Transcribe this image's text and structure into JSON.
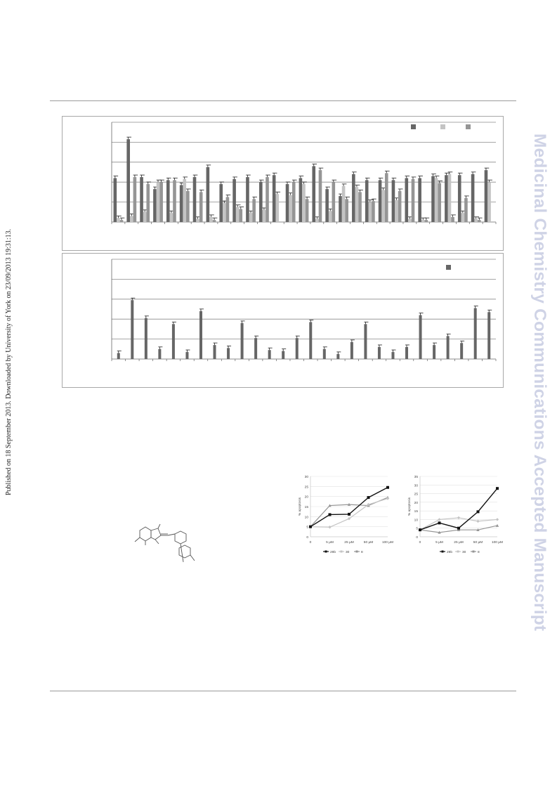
{
  "header_rule": "-",
  "download_notice": "Published on 18 September 2013. Downloaded by University of York on 23/09/2013 19:31:13.",
  "watermark": "Medicinal Chemistry Communications Accepted Manuscript",
  "colors": {
    "dark": "#666666",
    "mid": "#959595",
    "light": "#c4c4c4",
    "black": "#111111",
    "watermark": "#cfd3e6"
  },
  "chart_data": [
    {
      "type": "bar",
      "panel": "top",
      "series": [
        {
          "color": "#666666",
          "values": [
            44,
            83,
            45,
            33,
            42,
            37,
            45,
            55,
            38,
            43,
            45,
            40,
            47,
            38,
            44,
            56,
            33,
            26,
            48,
            42,
            42,
            42,
            44,
            44,
            46,
            47,
            47,
            48,
            52
          ]
        },
        {
          "color": "#c4c4c4",
          "values": [
            4,
            6,
            10,
            40,
            9,
            43,
            3,
            5,
            19,
            15,
            9,
            12,
            28,
            27,
            38,
            3,
            11,
            36,
            35,
            20,
            32,
            22,
            3,
            2,
            44,
            48,
            9,
            3,
            40
          ]
        },
        {
          "color": "#959595",
          "values": [
            2,
            45,
            38,
            40,
            42,
            31,
            30,
            2,
            25,
            13,
            23,
            45,
            0,
            40,
            23,
            52,
            40,
            23,
            30,
            21,
            49,
            31,
            43,
            2,
            39,
            5,
            24,
            2,
            0
          ]
        }
      ],
      "ylim": [
        0,
        100
      ]
    },
    {
      "type": "bar",
      "panel": "bottom",
      "series": [
        {
          "color": "#666666",
          "values": [
            6,
            59,
            41,
            10,
            35,
            7,
            48,
            14,
            11,
            36,
            21,
            9,
            8,
            21,
            37,
            10,
            5,
            17,
            35,
            12,
            7,
            12,
            44,
            14,
            23,
            16,
            51,
            47
          ]
        }
      ],
      "ylim": [
        0,
        100
      ]
    },
    {
      "type": "line",
      "panel": "lower-left",
      "categories": [
        "0",
        "5 µM",
        "25 µM",
        "50 µM",
        "100 µM"
      ],
      "yticks": [
        "0",
        "5",
        "10",
        "15",
        "20",
        "25",
        "30"
      ],
      "ylabel": "% apoptosis",
      "ylim": [
        0,
        30
      ],
      "series": [
        {
          "name": "29b",
          "color": "#111111",
          "marker": "square",
          "values": [
            5,
            11,
            11.2,
            19.5,
            24.5
          ]
        },
        {
          "name": "30",
          "color": "#c4c4c4",
          "marker": "diamond",
          "values": [
            5,
            4.8,
            9,
            16,
            19
          ]
        },
        {
          "name": "8",
          "color": "#959595",
          "marker": "triangle",
          "values": [
            5,
            15.5,
            16,
            15.5,
            19.5
          ]
        }
      ]
    },
    {
      "type": "line",
      "panel": "lower-right",
      "categories": [
        "0",
        "5 µM",
        "25 µM",
        "50 µM",
        "100 µM"
      ],
      "yticks": [
        "0",
        "5",
        "10",
        "15",
        "20",
        "25",
        "30",
        "35"
      ],
      "ylabel": "% apoptosis",
      "ylim": [
        0,
        35
      ],
      "series": [
        {
          "name": "29b",
          "color": "#111111",
          "marker": "square",
          "values": [
            4,
            8,
            5,
            14.5,
            28
          ]
        },
        {
          "name": "30",
          "color": "#c4c4c4",
          "marker": "diamond",
          "values": [
            4,
            10,
            11,
            9,
            10
          ]
        },
        {
          "name": "8",
          "color": "#959595",
          "marker": "triangle",
          "values": [
            4,
            2.5,
            4,
            4,
            6.5
          ]
        }
      ]
    }
  ]
}
